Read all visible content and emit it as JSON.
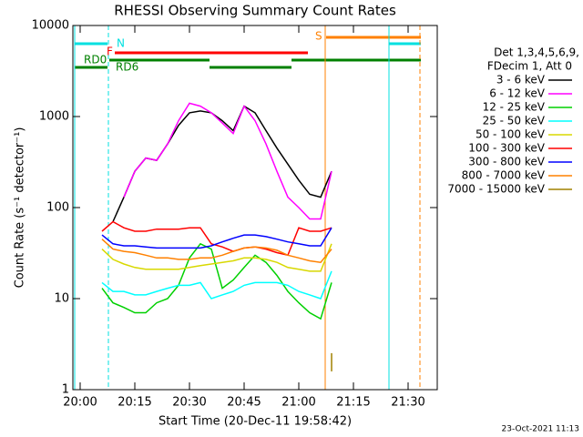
{
  "chart_data": {
    "type": "line",
    "title": "RHESSI Observing Summary Count Rates",
    "xlabel": "Start Time (20-Dec-11 19:58:42)",
    "ylabel": "Count Rate (s⁻¹ detector⁻¹)",
    "footer": "23-Oct-2021 11:13",
    "legend_header": [
      "Det 1,3,4,5,6,9,",
      "FDecim 1, Att 0"
    ],
    "yscale": "log",
    "xlim": [
      "19:58",
      "21:38"
    ],
    "ylim": [
      1,
      10000
    ],
    "xticks": [
      "20:00",
      "20:15",
      "20:30",
      "20:45",
      "21:00",
      "21:15",
      "21:30"
    ],
    "yticks": [
      1,
      10,
      100,
      1000,
      10000
    ],
    "annotations": [
      {
        "text": "N",
        "color": "#00e0e0"
      },
      {
        "text": "F",
        "color": "#ff0000"
      },
      {
        "text": "S",
        "color": "#ff8000"
      },
      {
        "text": "RD0",
        "color": "#008000"
      },
      {
        "text": "RD6",
        "color": "#008000"
      }
    ],
    "x": [
      "20:06",
      "20:09",
      "20:12",
      "20:15",
      "20:18",
      "20:21",
      "20:24",
      "20:27",
      "20:30",
      "20:33",
      "20:36",
      "20:39",
      "20:42",
      "20:45",
      "20:48",
      "20:51",
      "20:54",
      "20:57",
      "21:00",
      "21:03",
      "21:06",
      "21:09"
    ],
    "series": [
      {
        "name": "3 - 6 keV",
        "color": "#000000",
        "values": [
          null,
          70,
          130,
          250,
          350,
          330,
          500,
          800,
          1100,
          1150,
          1100,
          900,
          700,
          1300,
          1100,
          700,
          450,
          300,
          200,
          140,
          130,
          250
        ]
      },
      {
        "name": "6 - 12 keV",
        "color": "#ff00ff",
        "values": [
          null,
          null,
          130,
          250,
          350,
          330,
          500,
          900,
          1400,
          1300,
          1100,
          850,
          650,
          1300,
          900,
          500,
          250,
          130,
          100,
          75,
          75,
          250
        ]
      },
      {
        "name": "12 - 25 keV",
        "color": "#00d000",
        "values": [
          13,
          9,
          8,
          7,
          7,
          9,
          10,
          14,
          28,
          40,
          35,
          13,
          16,
          22,
          30,
          25,
          18,
          12,
          9,
          7,
          6,
          15
        ]
      },
      {
        "name": "25 - 50 keV",
        "color": "#00ffff",
        "values": [
          15,
          12,
          12,
          11,
          11,
          12,
          13,
          14,
          14,
          15,
          10,
          11,
          12,
          14,
          15,
          15,
          15,
          14,
          12,
          11,
          10,
          20
        ]
      },
      {
        "name": "50 - 100 keV",
        "color": "#d8d800",
        "values": [
          35,
          27,
          24,
          22,
          21,
          21,
          21,
          21,
          22,
          23,
          24,
          25,
          26,
          28,
          28,
          27,
          25,
          22,
          21,
          20,
          20,
          40
        ]
      },
      {
        "name": "100 - 300 keV",
        "color": "#ff0000",
        "values": [
          55,
          70,
          60,
          55,
          55,
          58,
          58,
          58,
          60,
          60,
          40,
          37,
          33,
          36,
          37,
          35,
          32,
          30,
          60,
          55,
          55,
          60
        ]
      },
      {
        "name": "300 - 800 keV",
        "color": "#0000ff",
        "values": [
          50,
          40,
          38,
          38,
          37,
          36,
          36,
          36,
          36,
          36,
          38,
          42,
          46,
          50,
          50,
          48,
          45,
          42,
          40,
          38,
          38,
          60
        ]
      },
      {
        "name": "800 - 7000 keV",
        "color": "#ff8000",
        "values": [
          45,
          35,
          33,
          32,
          30,
          28,
          28,
          27,
          27,
          28,
          28,
          30,
          33,
          36,
          37,
          36,
          34,
          30,
          28,
          26,
          25,
          35
        ]
      },
      {
        "name": "7000 - 15000 keV",
        "color": "#a08000",
        "values": [
          null,
          null,
          null,
          null,
          null,
          null,
          null,
          null,
          null,
          null,
          null,
          null,
          null,
          null,
          null,
          null,
          null,
          null,
          null,
          null,
          null,
          2
        ]
      }
    ]
  }
}
